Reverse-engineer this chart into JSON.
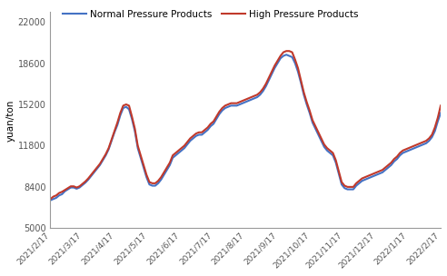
{
  "title": "",
  "ylabel": "yuan/ton",
  "ylim": [
    5000,
    22800
  ],
  "yticks": [
    5000,
    8400,
    11800,
    15200,
    18600,
    22000
  ],
  "legend_labels": [
    "Normal Pressure Products",
    "High Pressure Products"
  ],
  "line_colors": [
    "#4472C4",
    "#C0392B"
  ],
  "line_width": 1.5,
  "xtick_labels": [
    "2021/2/17",
    "2021/3/17",
    "2021/4/17",
    "2021/5/17",
    "2021/6/17",
    "2021/7/17",
    "2021/8/17",
    "2021/9/17",
    "2021/10/17",
    "2021/11/17",
    "2021/12/17",
    "2022/1/17",
    "2022/2/17"
  ],
  "normal_pressure": [
    7300,
    7400,
    7500,
    7700,
    7800,
    8050,
    8200,
    8350,
    8350,
    8250,
    8350,
    8550,
    8750,
    9000,
    9300,
    9600,
    9900,
    10200,
    10600,
    11000,
    11500,
    12200,
    12900,
    13500,
    14300,
    14900,
    15000,
    14800,
    14000,
    13000,
    11600,
    10800,
    10000,
    9200,
    8600,
    8500,
    8500,
    8700,
    9000,
    9400,
    9800,
    10200,
    10800,
    11000,
    11200,
    11400,
    11600,
    11900,
    12200,
    12400,
    12600,
    12700,
    12700,
    12900,
    13100,
    13400,
    13600,
    14000,
    14400,
    14700,
    14900,
    15000,
    15100,
    15100,
    15100,
    15200,
    15300,
    15400,
    15500,
    15600,
    15700,
    15800,
    16000,
    16300,
    16700,
    17200,
    17700,
    18200,
    18600,
    19000,
    19200,
    19300,
    19200,
    19100,
    18600,
    17900,
    17000,
    16000,
    15200,
    14500,
    13700,
    13200,
    12700,
    12200,
    11700,
    11400,
    11200,
    11000,
    10400,
    9500,
    8600,
    8300,
    8200,
    8200,
    8200,
    8500,
    8700,
    8900,
    9000,
    9100,
    9200,
    9300,
    9400,
    9500,
    9600,
    9800,
    10000,
    10200,
    10500,
    10700,
    11000,
    11200,
    11300,
    11400,
    11500,
    11600,
    11700,
    11800,
    11900,
    12000,
    12200,
    12500,
    13000,
    13800,
    14500
  ],
  "high_pressure": [
    7400,
    7600,
    7700,
    7900,
    8000,
    8150,
    8300,
    8450,
    8450,
    8350,
    8450,
    8650,
    8850,
    9100,
    9400,
    9700,
    10000,
    10300,
    10700,
    11100,
    11600,
    12300,
    13000,
    13700,
    14500,
    15100,
    15200,
    15100,
    14200,
    13200,
    11800,
    11000,
    10200,
    9400,
    8800,
    8700,
    8700,
    8900,
    9200,
    9600,
    10000,
    10400,
    11000,
    11200,
    11400,
    11600,
    11800,
    12100,
    12400,
    12600,
    12800,
    12900,
    12900,
    13100,
    13300,
    13600,
    13800,
    14200,
    14600,
    14900,
    15100,
    15200,
    15300,
    15300,
    15300,
    15400,
    15500,
    15600,
    15700,
    15800,
    15900,
    16000,
    16200,
    16500,
    16900,
    17400,
    17900,
    18400,
    18800,
    19200,
    19500,
    19600,
    19600,
    19500,
    18900,
    18200,
    17200,
    16200,
    15400,
    14700,
    13900,
    13400,
    12900,
    12400,
    11900,
    11600,
    11400,
    11200,
    10600,
    9700,
    8800,
    8500,
    8400,
    8400,
    8400,
    8700,
    8900,
    9100,
    9200,
    9300,
    9400,
    9500,
    9600,
    9700,
    9800,
    10000,
    10200,
    10400,
    10700,
    10900,
    11200,
    11400,
    11500,
    11600,
    11700,
    11800,
    11900,
    12000,
    12100,
    12200,
    12400,
    12700,
    13300,
    14100,
    15100
  ],
  "background_color": "#FFFFFF",
  "plot_bg_color": "#FFFFFF"
}
